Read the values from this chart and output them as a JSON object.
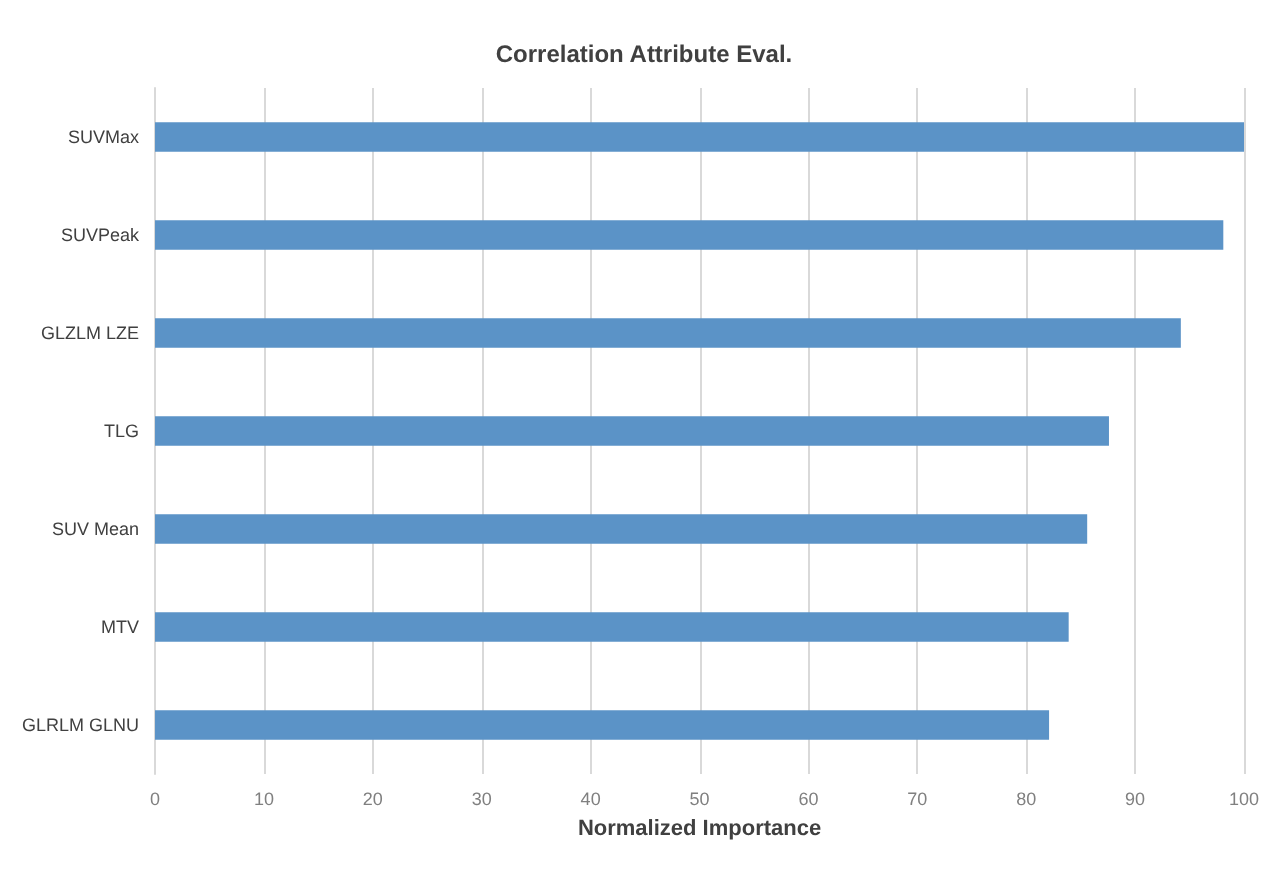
{
  "chart_data": {
    "type": "bar",
    "orientation": "horizontal",
    "title": "Correlation Attribute Eval.",
    "xlabel": "Normalized Importance",
    "categories": [
      "SUVMax",
      "SUVPeak",
      "GLZLM LZE",
      "TLG",
      "SUV Mean",
      "MTV",
      "GLRLM GLNU"
    ],
    "values": [
      100,
      98.1,
      94.2,
      87.6,
      85.6,
      83.9,
      82.1
    ],
    "color": "#5b93c7",
    "xlim": [
      0,
      100
    ],
    "xticks": [
      0,
      10,
      20,
      30,
      40,
      50,
      60,
      70,
      80,
      90,
      100
    ],
    "grid": "x"
  }
}
